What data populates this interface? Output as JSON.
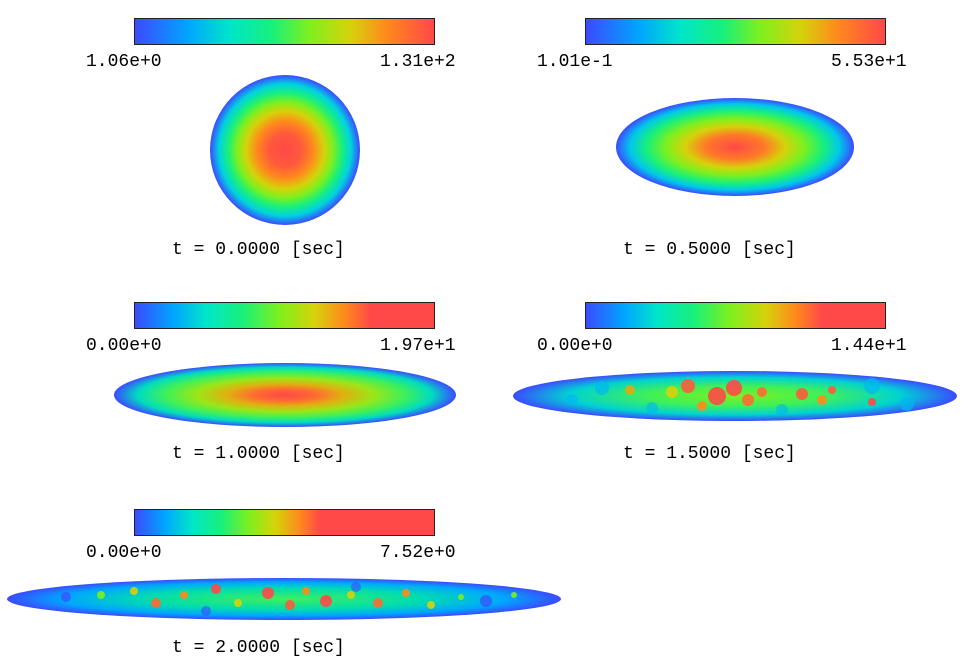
{
  "panels": [
    {
      "time_label": "t = 0.0000 [sec]",
      "colorbar": {
        "min": "1.06e+0",
        "max": "1.31e+2"
      }
    },
    {
      "time_label": "t = 0.5000 [sec]",
      "colorbar": {
        "min": "1.01e-1",
        "max": "5.53e+1"
      }
    },
    {
      "time_label": "t = 1.0000 [sec]",
      "colorbar": {
        "min": "0.00e+0",
        "max": "1.97e+1"
      }
    },
    {
      "time_label": "t = 1.5000 [sec]",
      "colorbar": {
        "min": "0.00e+0",
        "max": "1.44e+1"
      }
    },
    {
      "time_label": "t = 2.0000 [sec]",
      "colorbar": {
        "min": "0.00e+0",
        "max": "7.52e+0"
      }
    }
  ],
  "colormap": [
    "#3a4bff",
    "#00a6ff",
    "#00e6c8",
    "#19f07a",
    "#7df01e",
    "#d6d20a",
    "#ff8a1c",
    "#ff4848"
  ]
}
